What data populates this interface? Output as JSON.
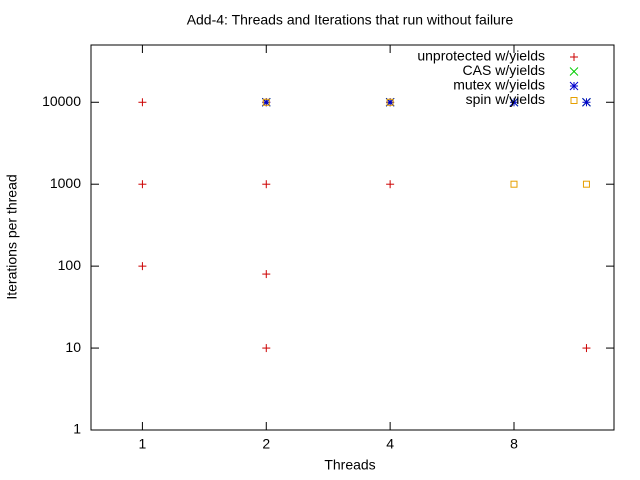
{
  "chart_data": {
    "type": "scatter",
    "title": "Add-4: Threads and Iterations that run without failure",
    "xlabel": "Threads",
    "ylabel": "Iterations per thread",
    "xscale": "log",
    "yscale": "log",
    "xlim": [
      0.75,
      14
    ],
    "ylim": [
      1,
      50000
    ],
    "xticks": [
      1,
      2,
      4,
      8
    ],
    "yticks": [
      1,
      10,
      100,
      1000,
      10000
    ],
    "legend": "upper right",
    "series": [
      {
        "name": "unprotected w/yields",
        "color": "#cc0000",
        "marker": "plus",
        "x": [
          1,
          1,
          1,
          2,
          2,
          2,
          2,
          4,
          4,
          12
        ],
        "values": [
          10000,
          1000,
          100,
          10000,
          1000,
          80,
          10,
          10000,
          1000,
          10
        ]
      },
      {
        "name": "CAS w/yields",
        "color": "#00cc00",
        "marker": "cross",
        "x": [
          2,
          4,
          8,
          12
        ],
        "values": [
          10000,
          10000,
          10000,
          10000
        ]
      },
      {
        "name": "mutex w/yields",
        "color": "#0000cc",
        "marker": "star",
        "x": [
          2,
          4,
          8,
          12
        ],
        "values": [
          10000,
          10000,
          10000,
          10000
        ]
      },
      {
        "name": "spin w/yields",
        "color": "#e69f00",
        "marker": "square",
        "x": [
          2,
          4,
          8,
          12
        ],
        "values": [
          10000,
          10000,
          1000,
          1000
        ]
      }
    ]
  }
}
